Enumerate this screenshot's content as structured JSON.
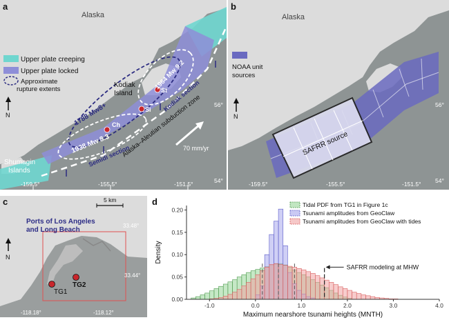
{
  "colors": {
    "ocean": "#8e9494",
    "land": "#dcdcdc",
    "creeping": "#6fd6cf",
    "locked": "#8e8ed8",
    "locked_dark": "#5c5cb0",
    "rupture": "#2b2b80",
    "marker": "#c8262c",
    "label_blue": "#2d2d86",
    "hist_tidal": "#98d698",
    "hist_geoclaw": "#a7a7ec",
    "hist_tides": "#f0a3a3"
  },
  "panel_a": {
    "letter": "a",
    "alaska": "Alaska",
    "legend_creeping": "Upper plate creeping",
    "legend_locked": "Upper plate locked",
    "legend_rupture_1": "Approximate",
    "legend_rupture_2": "rupture extents",
    "north": "N",
    "kodiak_1": "Kodiak",
    "kodiak_2": "Island",
    "rupture_1788": "1788 Mw8+",
    "rupture_1938": "1938 Mw 8.3",
    "rupture_1964": "1964 Mw 9.2",
    "kodiak_section": "Kodiak section",
    "semidi_section": "Semidi section",
    "subduction": "Alaska–Aleutian subduction zone",
    "si": "Si",
    "st": "St",
    "ch": "Ch",
    "shumagin_1": "Shumagin",
    "shumagin_2": "Islands",
    "rate": "70 mm/yr",
    "lon_ticks": [
      "-159.5°",
      "-155.5°",
      "-151.5°"
    ],
    "lat_ticks": [
      "56°",
      "54°"
    ]
  },
  "panel_b": {
    "letter": "b",
    "alaska": "Alaska",
    "legend_1": "NOAA unit",
    "legend_2": "sources",
    "north": "N",
    "safrr": "SAFRR source",
    "lon_ticks": [
      "-159.5°",
      "-155.5°",
      "-151.5°"
    ],
    "lat_ticks": [
      "56°",
      "54°"
    ]
  },
  "panel_c": {
    "letter": "c",
    "scale": "5 km",
    "title_1": "Ports of Los Angeles",
    "title_2": "and Long Beach",
    "north": "N",
    "tg1": "TG1",
    "tg2": "TG2",
    "lat_ticks": [
      "33.48°",
      "33.44°"
    ],
    "lon_ticks": [
      "-118.18°",
      "-118.12°"
    ]
  },
  "panel_d": {
    "letter": "d"
  },
  "chart_data": {
    "type": "histogram",
    "xlabel": "Maximum nearshore tsunami heights (MNTH)",
    "ylabel": "Density",
    "xlim": [
      -1.5,
      4.0
    ],
    "ylim": [
      0,
      0.21
    ],
    "x_ticks": [
      "-1.0",
      "0.0",
      "1.0",
      "2.0",
      "3.0",
      "4.0"
    ],
    "y_ticks": [
      "0.00",
      "0.05",
      "0.10",
      "0.15",
      "0.20"
    ],
    "legend_position": "top-right",
    "bin_width": 0.1,
    "series": [
      {
        "name": "Tidal PDF from TG1 in Figure 1c",
        "color": "#98d698",
        "bin_start": -1.4,
        "values": [
          0.003,
          0.006,
          0.01,
          0.014,
          0.019,
          0.024,
          0.029,
          0.034,
          0.039,
          0.044,
          0.05,
          0.055,
          0.06,
          0.064,
          0.067,
          0.07,
          0.073,
          0.076,
          0.079,
          0.08,
          0.077,
          0.072,
          0.066,
          0.06,
          0.055,
          0.05,
          0.044,
          0.038,
          0.032,
          0.026,
          0.02,
          0.014,
          0.009,
          0.005,
          0.002
        ]
      },
      {
        "name": "Tsunami amplitudes from GeoClaw",
        "color": "#a7a7ec",
        "bin_start": 0.0,
        "values": [
          0.01,
          0.03,
          0.1,
          0.145,
          0.175,
          0.202,
          0.12,
          0.06,
          0.035,
          0.02,
          0.012,
          0.006,
          0.003
        ]
      },
      {
        "name": "Tsunami amplitudes from GeoClaw with tides",
        "color": "#f0a3a3",
        "bin_start": -1.0,
        "values": [
          0.001,
          0.002,
          0.004,
          0.007,
          0.011,
          0.016,
          0.022,
          0.03,
          0.038,
          0.046,
          0.055,
          0.064,
          0.072,
          0.078,
          0.08,
          0.078,
          0.076,
          0.074,
          0.072,
          0.069,
          0.066,
          0.062,
          0.058,
          0.053,
          0.048,
          0.043,
          0.038,
          0.033,
          0.028,
          0.024,
          0.02,
          0.016,
          0.013,
          0.01,
          0.008,
          0.006,
          0.004,
          0.003,
          0.002,
          0.001,
          0.001
        ]
      }
    ],
    "annotation": {
      "text": "SAFRR modeling at MHW",
      "x": 1.5
    },
    "markers_dashed_x": [
      0.15,
      0.5,
      0.85
    ]
  }
}
